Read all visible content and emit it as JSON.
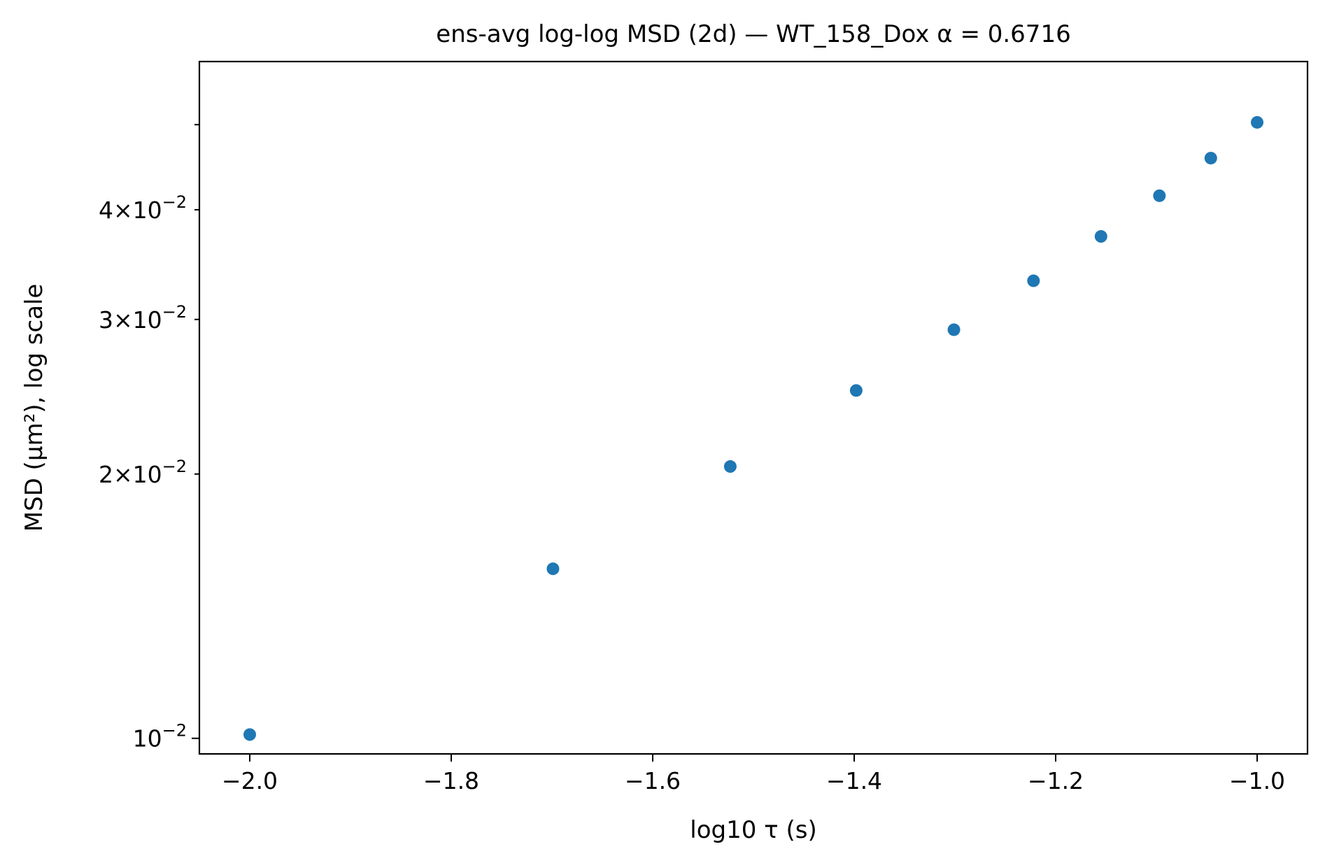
{
  "chart_data": {
    "type": "scatter",
    "title": "ens-avg log-log MSD (2d) — WT_158_Dox α = 0.6716",
    "xlabel": "log10 τ (s)",
    "ylabel": "MSD (μm²), log scale",
    "xlim": [
      -2.05,
      -0.95
    ],
    "ylim": [
      0.0096,
      0.059
    ],
    "yscale": "log",
    "grid": false,
    "color": "#1f77b4",
    "x": [
      -2.0,
      -1.699,
      -1.523,
      -1.398,
      -1.301,
      -1.222,
      -1.155,
      -1.097,
      -1.046,
      -1.0
    ],
    "y": [
      0.0101,
      0.0156,
      0.0204,
      0.0249,
      0.0292,
      0.0332,
      0.0373,
      0.0415,
      0.0458,
      0.0503
    ],
    "xticks": [
      {
        "value": -2.0,
        "label": "−2.0"
      },
      {
        "value": -1.8,
        "label": "−1.8"
      },
      {
        "value": -1.6,
        "label": "−1.6"
      },
      {
        "value": -1.4,
        "label": "−1.4"
      },
      {
        "value": -1.2,
        "label": "−1.2"
      },
      {
        "value": -1.0,
        "label": "−1.0"
      }
    ],
    "yticks_major": [
      {
        "value": 0.01,
        "base": "10",
        "exp": "−2"
      }
    ],
    "yticks_minor_labeled": [
      {
        "value": 0.02,
        "coef": "2",
        "base": "10",
        "exp": "−2"
      },
      {
        "value": 0.03,
        "coef": "3",
        "base": "10",
        "exp": "−2"
      },
      {
        "value": 0.04,
        "coef": "4",
        "base": "10",
        "exp": "−2"
      }
    ],
    "yticks_minor_unlabeled": [
      0.05
    ]
  }
}
